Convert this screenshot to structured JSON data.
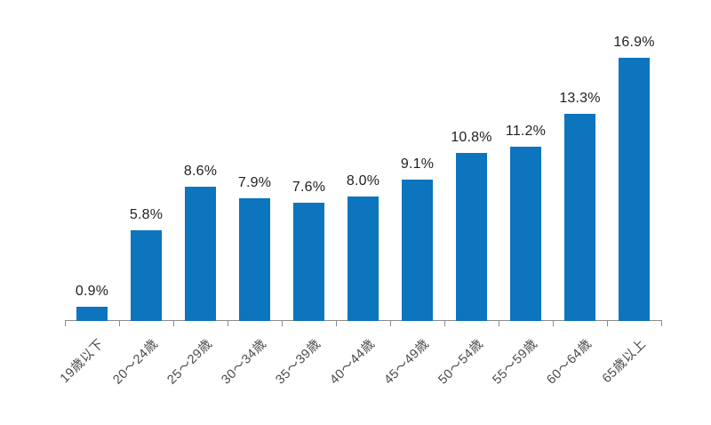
{
  "chart_data": {
    "type": "bar",
    "title": "",
    "xlabel": "",
    "ylabel": "",
    "categories": [
      "19歳以下",
      "20〜24歳",
      "25〜29歳",
      "30〜34歳",
      "35〜39歳",
      "40〜44歳",
      "45〜49歳",
      "50〜54歳",
      "55〜59歳",
      "60〜64歳",
      "65歳以上"
    ],
    "values": [
      0.9,
      5.8,
      8.6,
      7.9,
      7.6,
      8.0,
      9.1,
      10.8,
      11.2,
      13.3,
      16.9
    ],
    "value_labels": [
      "0.9%",
      "5.8%",
      "8.6%",
      "7.9%",
      "7.6%",
      "8.0%",
      "9.1%",
      "10.8%",
      "11.2%",
      "13.3%",
      "16.9%"
    ],
    "ylim": [
      0,
      18
    ],
    "grid": false,
    "legend": false,
    "axis": {
      "x_axis_visible": true,
      "y_axis_visible": false,
      "tick_marks": "outside"
    },
    "colors": {
      "bar": "#0d74be",
      "value_label": "#1f1f1f",
      "axis_label": "#4a4a4a",
      "axis_line": "#8c8c8c"
    }
  }
}
